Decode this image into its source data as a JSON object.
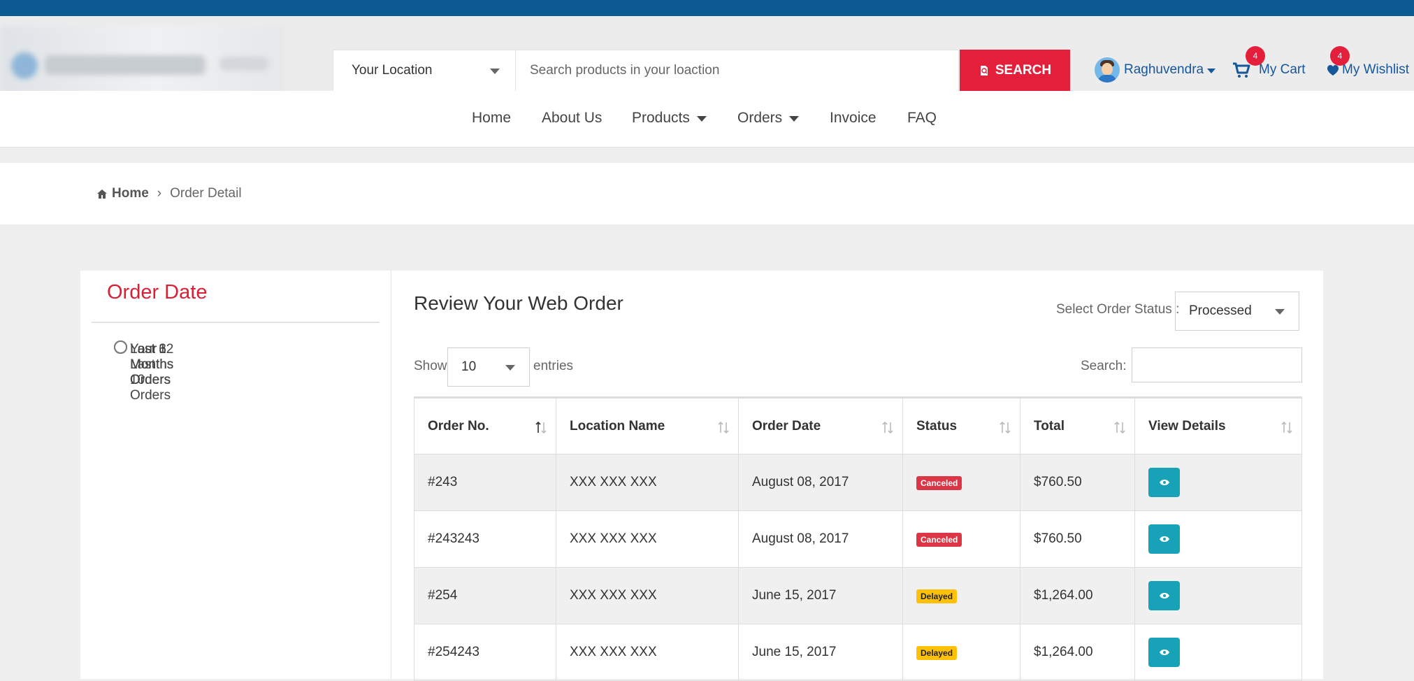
{
  "header": {
    "location_select": {
      "value": "Your Location"
    },
    "search": {
      "placeholder": "Search products in your loaction",
      "button_label": "SEARCH"
    },
    "user": {
      "name": "Raghuvendra"
    },
    "cart": {
      "label": "My Cart",
      "count": "4"
    },
    "wishlist": {
      "label": "My Wishlist",
      "count": "4"
    },
    "colors": {
      "primary_blue": "#0b5a93",
      "accent_red": "#e41f3c",
      "link_blue": "#16569b"
    }
  },
  "nav": {
    "items": [
      {
        "label": "Home",
        "dropdown": false
      },
      {
        "label": "About Us",
        "dropdown": false
      },
      {
        "label": "Products",
        "dropdown": true
      },
      {
        "label": "Orders",
        "dropdown": true
      },
      {
        "label": "Invoice",
        "dropdown": false
      },
      {
        "label": "FAQ",
        "dropdown": false
      }
    ]
  },
  "breadcrumb": {
    "home": "Home",
    "current": "Order Detail"
  },
  "filters": {
    "title": "Order Date",
    "options": [
      {
        "label": "Your Last 10 Orders",
        "checked": true
      },
      {
        "label": "Last Month Orders",
        "checked": false
      },
      {
        "label": "Last 3 Months Orders",
        "checked": false
      },
      {
        "label": "Last 6 Months Orders",
        "checked": false
      },
      {
        "label": "Last 12 Months Orders",
        "checked": false
      }
    ]
  },
  "orders": {
    "title": "Review Your Web Order",
    "status_select": {
      "label": "Select Order Status :",
      "value": "Processed"
    },
    "show_entries": {
      "prefix": "Show",
      "value": "10",
      "suffix": "entries"
    },
    "search_label": "Search:",
    "columns": [
      "Order No.",
      "Location Name",
      "Order Date",
      "Status",
      "Total",
      "View Details"
    ],
    "rows": [
      {
        "order_no": "#243",
        "location": "XXX XXX XXX",
        "date": "August 08, 2017",
        "status": "Canceled",
        "status_type": "canceled",
        "total": "$760.50"
      },
      {
        "order_no": "#243243",
        "location": "XXX XXX XXX",
        "date": "August 08, 2017",
        "status": "Canceled",
        "status_type": "canceled",
        "total": "$760.50"
      },
      {
        "order_no": "#254",
        "location": "XXX XXX XXX",
        "date": "June 15, 2017",
        "status": "Delayed",
        "status_type": "delayed",
        "total": "$1,264.00"
      },
      {
        "order_no": "#254243",
        "location": "XXX XXX XXX",
        "date": "June 15, 2017",
        "status": "Delayed",
        "status_type": "delayed",
        "total": "$1,264.00"
      }
    ]
  }
}
